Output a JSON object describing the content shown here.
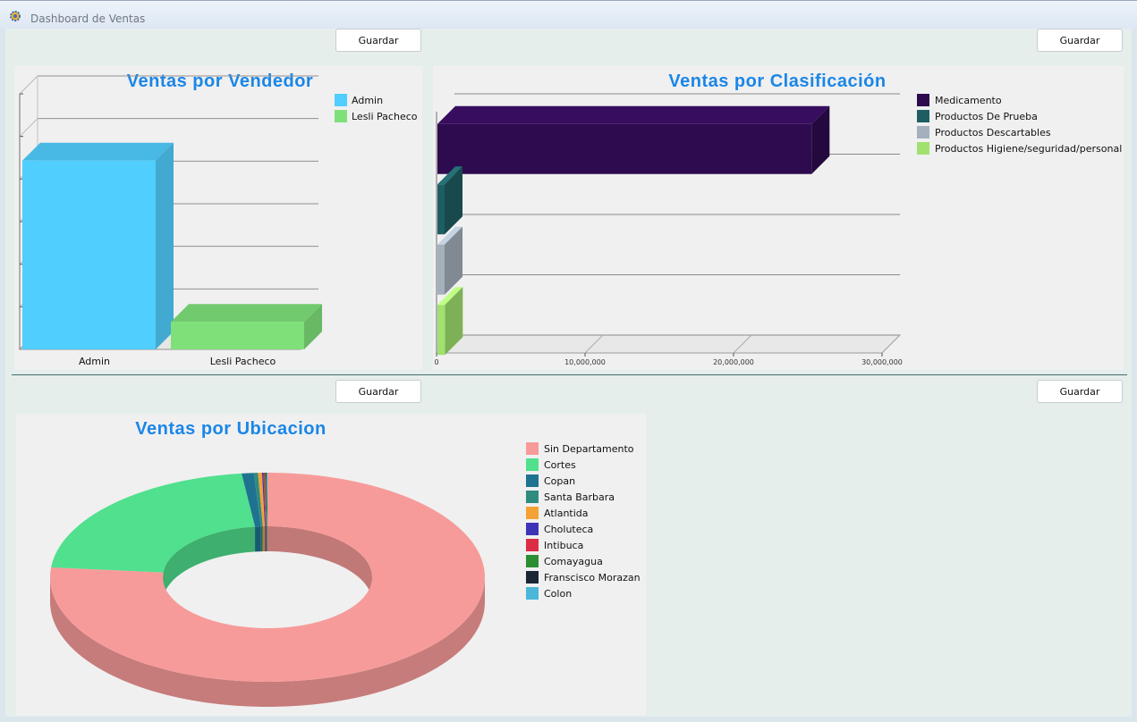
{
  "window": {
    "title": "Dashboard de Ventas"
  },
  "buttons": {
    "save_label": "Guardar"
  },
  "colors": {
    "title": "#1a86e8"
  },
  "icons": {
    "app": "gear-icon"
  },
  "chart_data": [
    {
      "id": "vendedor",
      "type": "bar",
      "title": "Ventas por Vendedor",
      "categories": [
        "Admin",
        "Lesli Pacheco"
      ],
      "values": [
        4.8,
        0.7
      ],
      "colors": [
        "#50cefe",
        "#7fe07a"
      ],
      "legend": [
        "Admin",
        "Lesli Pacheco"
      ],
      "legend_position": "right",
      "grid": true,
      "ylim": [
        0,
        6.5
      ]
    },
    {
      "id": "clasificacion",
      "type": "bar",
      "orientation": "horizontal",
      "title": "Ventas por Clasificación",
      "categories": [
        "Medicamento",
        "Productos De Prueba",
        "Productos Descartables",
        "Productos Higiene/seguridad/personal"
      ],
      "values": [
        25200000,
        100000,
        50000,
        500000
      ],
      "colors": [
        "#2e0b4f",
        "#1e5e63",
        "#a5b0bd",
        "#a0e16f"
      ],
      "legend_position": "right",
      "grid": true,
      "xlim": [
        0,
        30000000
      ],
      "x_ticks": [
        "0",
        "10,000,000",
        "20,000,000",
        "30,000,000"
      ]
    },
    {
      "id": "ubicacion",
      "type": "pie",
      "title": "Ventas por Ubicacion",
      "categories": [
        "Sin Departamento",
        "Cortes",
        "Copan",
        "Santa Barbara",
        "Atlantida",
        "Choluteca",
        "Intibuca",
        "Comayagua",
        "Franscisco Morazan",
        "Colon"
      ],
      "values": [
        76.5,
        21.6,
        0.9,
        0.3,
        0.3,
        0.1,
        0.1,
        0.1,
        0.05,
        0.05
      ],
      "colors": [
        "#f79b9a",
        "#50e08e",
        "#1f7390",
        "#2e8b80",
        "#f4a236",
        "#3e34b8",
        "#dc2c46",
        "#2a8f32",
        "#1a2636",
        "#4ab6d8"
      ],
      "legend_position": "right"
    }
  ]
}
